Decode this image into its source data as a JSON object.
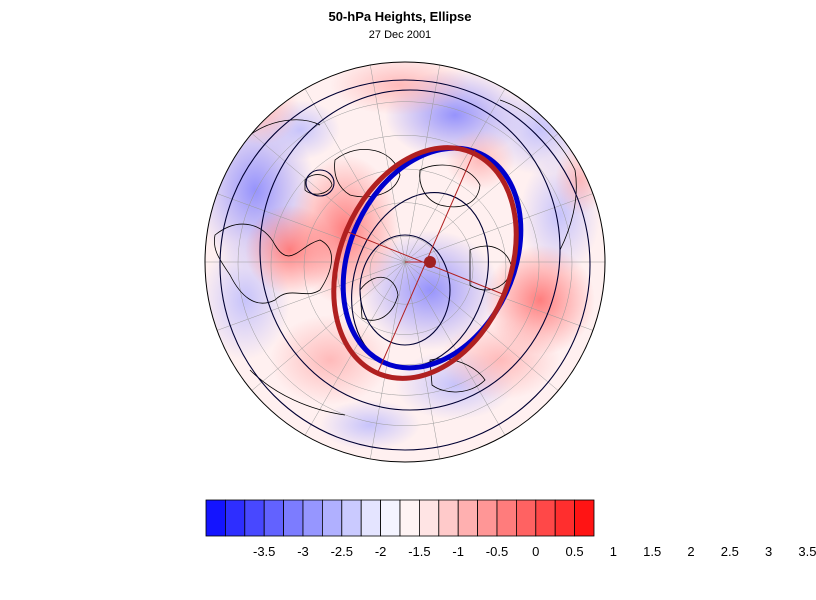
{
  "title": "50-hPa Heights, Ellipse",
  "subtitle": "27 Dec 2001",
  "colors": {
    "ellipse_blue": "#0000cc",
    "ellipse_red": "#b02020",
    "axis_line": "#b02020",
    "centroid": "#a02020",
    "contour": "#000033",
    "coastline": "#000000"
  },
  "colorbar": {
    "colors": [
      "#1414ff",
      "#2e2eff",
      "#4848ff",
      "#6262ff",
      "#7c7cff",
      "#9696ff",
      "#b0b0ff",
      "#cacaff",
      "#e4e4ff",
      "#f4f4ff",
      "#fff4f4",
      "#ffe4e4",
      "#ffcaca",
      "#ffb0b0",
      "#ff9696",
      "#ff7c7c",
      "#ff6262",
      "#ff4848",
      "#ff2e2e",
      "#ff1414"
    ],
    "labels": [
      "-3.5",
      "-3",
      "-2.5",
      "-2",
      "-1.5",
      "-1",
      "-0.5",
      "0",
      "0.5",
      "1",
      "1.5",
      "2",
      "2.5",
      "3",
      "3.5"
    ]
  }
}
